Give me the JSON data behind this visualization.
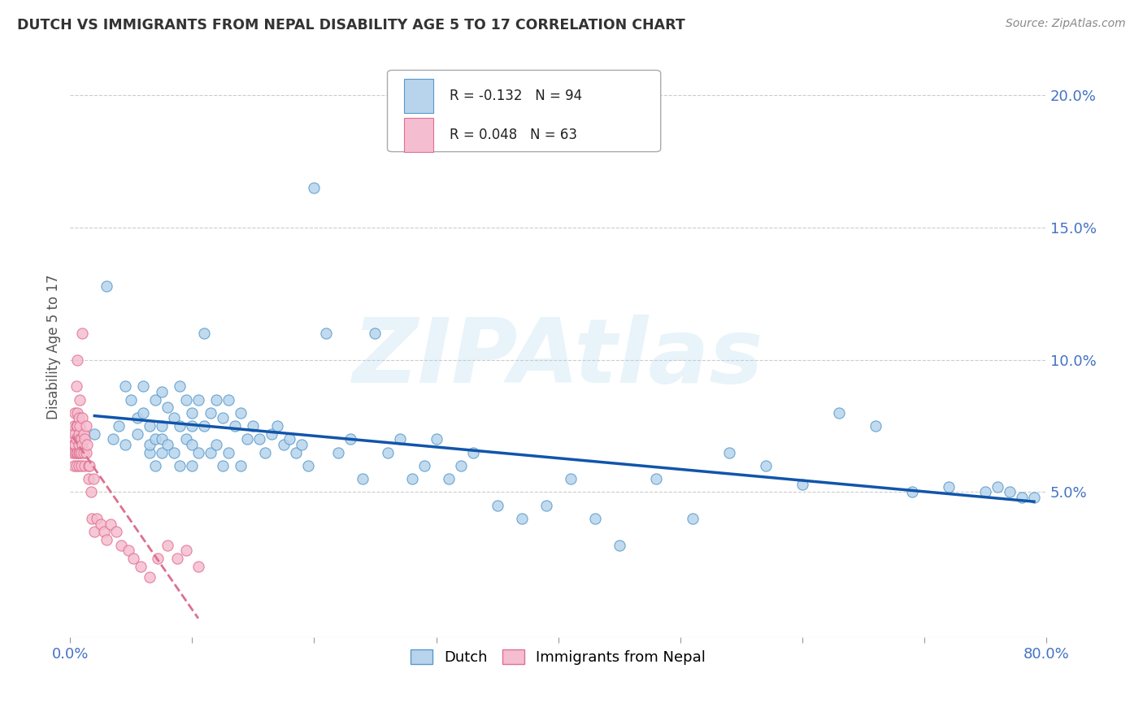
{
  "title": "DUTCH VS IMMIGRANTS FROM NEPAL DISABILITY AGE 5 TO 17 CORRELATION CHART",
  "source": "Source: ZipAtlas.com",
  "ylabel": "Disability Age 5 to 17",
  "xlim": [
    0.0,
    0.8
  ],
  "ylim": [
    -0.005,
    0.215
  ],
  "ytick_vals_right": [
    0.05,
    0.1,
    0.15,
    0.2
  ],
  "ytick_labels_right": [
    "5.0%",
    "10.0%",
    "15.0%",
    "20.0%"
  ],
  "legend_r1_val": "R = -0.132",
  "legend_r1_n": "N = 94",
  "legend_r2_val": "R = 0.048",
  "legend_r2_n": "N = 63",
  "dutch_color": "#b8d4ec",
  "dutch_edge_color": "#5599cc",
  "nepal_color": "#f5bdd0",
  "nepal_edge_color": "#e07090",
  "trend_dutch_color": "#1155aa",
  "trend_nepal_color": "#dd7090",
  "watermark": "ZIPAtlas",
  "dutch_x": [
    0.02,
    0.03,
    0.035,
    0.04,
    0.045,
    0.045,
    0.05,
    0.055,
    0.055,
    0.06,
    0.06,
    0.065,
    0.065,
    0.065,
    0.07,
    0.07,
    0.07,
    0.075,
    0.075,
    0.075,
    0.075,
    0.08,
    0.08,
    0.085,
    0.085,
    0.09,
    0.09,
    0.09,
    0.095,
    0.095,
    0.1,
    0.1,
    0.1,
    0.1,
    0.105,
    0.105,
    0.11,
    0.11,
    0.115,
    0.115,
    0.12,
    0.12,
    0.125,
    0.125,
    0.13,
    0.13,
    0.135,
    0.14,
    0.14,
    0.145,
    0.15,
    0.155,
    0.16,
    0.165,
    0.17,
    0.175,
    0.18,
    0.185,
    0.19,
    0.195,
    0.2,
    0.21,
    0.22,
    0.23,
    0.24,
    0.25,
    0.26,
    0.27,
    0.28,
    0.29,
    0.3,
    0.31,
    0.32,
    0.33,
    0.35,
    0.37,
    0.39,
    0.41,
    0.43,
    0.45,
    0.48,
    0.51,
    0.54,
    0.57,
    0.6,
    0.63,
    0.66,
    0.69,
    0.72,
    0.75,
    0.76,
    0.77,
    0.78,
    0.79
  ],
  "dutch_y": [
    0.072,
    0.128,
    0.07,
    0.075,
    0.068,
    0.09,
    0.085,
    0.078,
    0.072,
    0.08,
    0.09,
    0.075,
    0.065,
    0.068,
    0.085,
    0.07,
    0.06,
    0.088,
    0.075,
    0.065,
    0.07,
    0.082,
    0.068,
    0.078,
    0.065,
    0.09,
    0.075,
    0.06,
    0.085,
    0.07,
    0.08,
    0.068,
    0.06,
    0.075,
    0.085,
    0.065,
    0.11,
    0.075,
    0.08,
    0.065,
    0.085,
    0.068,
    0.078,
    0.06,
    0.085,
    0.065,
    0.075,
    0.08,
    0.06,
    0.07,
    0.075,
    0.07,
    0.065,
    0.072,
    0.075,
    0.068,
    0.07,
    0.065,
    0.068,
    0.06,
    0.165,
    0.11,
    0.065,
    0.07,
    0.055,
    0.11,
    0.065,
    0.07,
    0.055,
    0.06,
    0.07,
    0.055,
    0.06,
    0.065,
    0.045,
    0.04,
    0.045,
    0.055,
    0.04,
    0.03,
    0.055,
    0.04,
    0.065,
    0.06,
    0.053,
    0.08,
    0.075,
    0.05,
    0.052,
    0.05,
    0.052,
    0.05,
    0.048,
    0.048
  ],
  "nepal_x": [
    0.002,
    0.002,
    0.003,
    0.003,
    0.003,
    0.004,
    0.004,
    0.004,
    0.004,
    0.005,
    0.005,
    0.005,
    0.005,
    0.005,
    0.006,
    0.006,
    0.006,
    0.006,
    0.007,
    0.007,
    0.007,
    0.007,
    0.007,
    0.008,
    0.008,
    0.008,
    0.008,
    0.009,
    0.009,
    0.009,
    0.01,
    0.01,
    0.01,
    0.011,
    0.011,
    0.012,
    0.012,
    0.013,
    0.013,
    0.014,
    0.015,
    0.015,
    0.016,
    0.017,
    0.018,
    0.019,
    0.02,
    0.022,
    0.025,
    0.028,
    0.03,
    0.033,
    0.038,
    0.042,
    0.048,
    0.052,
    0.058,
    0.065,
    0.072,
    0.08,
    0.088,
    0.095,
    0.105
  ],
  "nepal_y": [
    0.07,
    0.065,
    0.075,
    0.068,
    0.06,
    0.08,
    0.072,
    0.065,
    0.068,
    0.09,
    0.075,
    0.065,
    0.07,
    0.06,
    0.1,
    0.065,
    0.075,
    0.08,
    0.072,
    0.065,
    0.078,
    0.06,
    0.068,
    0.085,
    0.065,
    0.075,
    0.07,
    0.06,
    0.065,
    0.07,
    0.11,
    0.068,
    0.078,
    0.065,
    0.072,
    0.07,
    0.06,
    0.075,
    0.065,
    0.068,
    0.06,
    0.055,
    0.06,
    0.05,
    0.04,
    0.055,
    0.035,
    0.04,
    0.038,
    0.035,
    0.032,
    0.038,
    0.035,
    0.03,
    0.028,
    0.025,
    0.022,
    0.018,
    0.025,
    0.03,
    0.025,
    0.028,
    0.022
  ]
}
